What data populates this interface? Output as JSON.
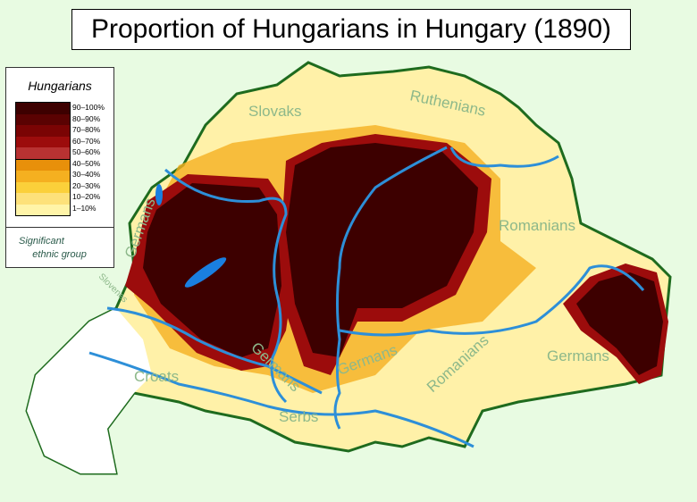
{
  "title": "Proportion of Hungarians in Hungary (1890)",
  "legend": {
    "title": "Hungarians",
    "bins": [
      {
        "label": "90–100%",
        "color": "#3d0000"
      },
      {
        "label": "80–90%",
        "color": "#5a0202"
      },
      {
        "label": "70–80%",
        "color": "#7a0404"
      },
      {
        "label": "60–70%",
        "color": "#9c0c0c"
      },
      {
        "label": "50–60%",
        "color": "#b83232"
      },
      {
        "label": "40–50%",
        "color": "#e8900a"
      },
      {
        "label": "30–40%",
        "color": "#f5b020"
      },
      {
        "label": "20–30%",
        "color": "#fbd03a"
      },
      {
        "label": "10–20%",
        "color": "#fde17a"
      },
      {
        "label": "1–10%",
        "color": "#fff4a8"
      }
    ],
    "ethnic_label_line1": "Significant",
    "ethnic_label_line2": "ethnic group"
  },
  "ethnic_labels": {
    "slovaks": "Slovaks",
    "ruthenians": "Ruthenians",
    "germans_west": "Germans",
    "slovenes": "Slovenes",
    "romanians_east": "Romanians",
    "croats": "Croats",
    "germans_center": "Germans",
    "germans_south": "Germans",
    "serbs": "Serbs",
    "romanians_south": "Romanians",
    "germans_east": "Germans"
  },
  "colors": {
    "background": "#e8fbe2",
    "border": "#1e6b1e",
    "river": "#2d8fd8",
    "lake": "#1a7fe0"
  }
}
